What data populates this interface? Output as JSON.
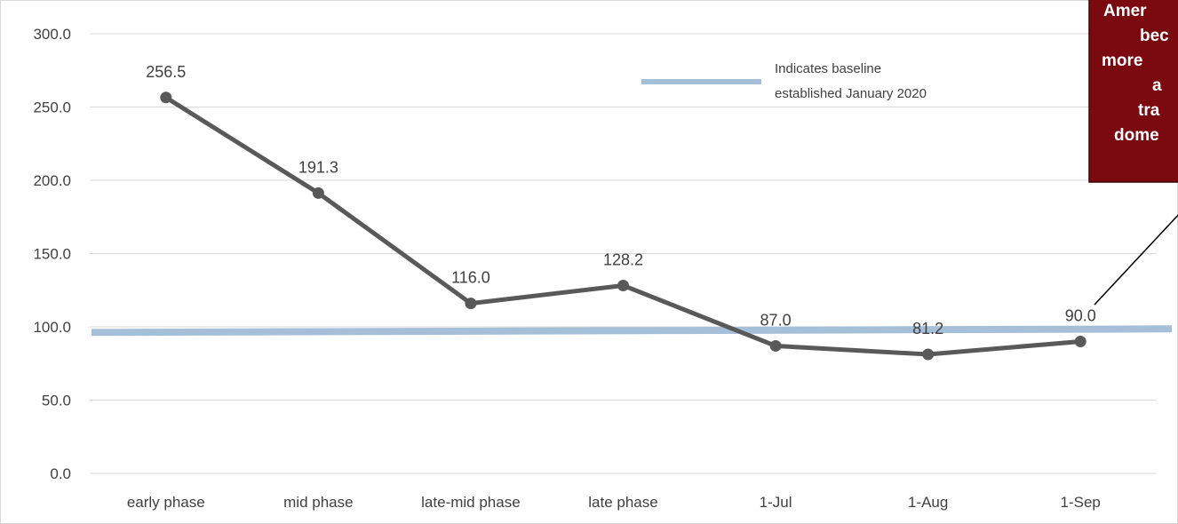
{
  "chart_data": {
    "type": "line",
    "categories": [
      "early phase",
      "mid phase",
      "late-mid phase",
      "late phase",
      "1-Jul",
      "1-Aug",
      "1-Sep"
    ],
    "series": [
      {
        "values": [
          256.5,
          191.3,
          116.0,
          128.2,
          87.0,
          81.2,
          90.0
        ]
      }
    ],
    "data_labels": [
      "256.5",
      "191.3",
      "116.0",
      "128.2",
      "87.0",
      "81.2",
      "90.0"
    ],
    "y_ticks": [
      "0.0",
      "50.0",
      "100.0",
      "150.0",
      "200.0",
      "250.0",
      "300.0"
    ],
    "ylim": [
      0,
      300
    ],
    "baseline": {
      "value": 98,
      "legend_line1": "Indicates baseline",
      "legend_line2": "established January 2020"
    },
    "callout_lines": [
      "Amer",
      "bec",
      "more",
      "a",
      "tra",
      "dome"
    ],
    "grid": true,
    "colors": {
      "series": "#595959",
      "baseline": "#a6bfd9",
      "grid": "#d9d9d9",
      "callout_bg": "#7b0a10"
    }
  }
}
